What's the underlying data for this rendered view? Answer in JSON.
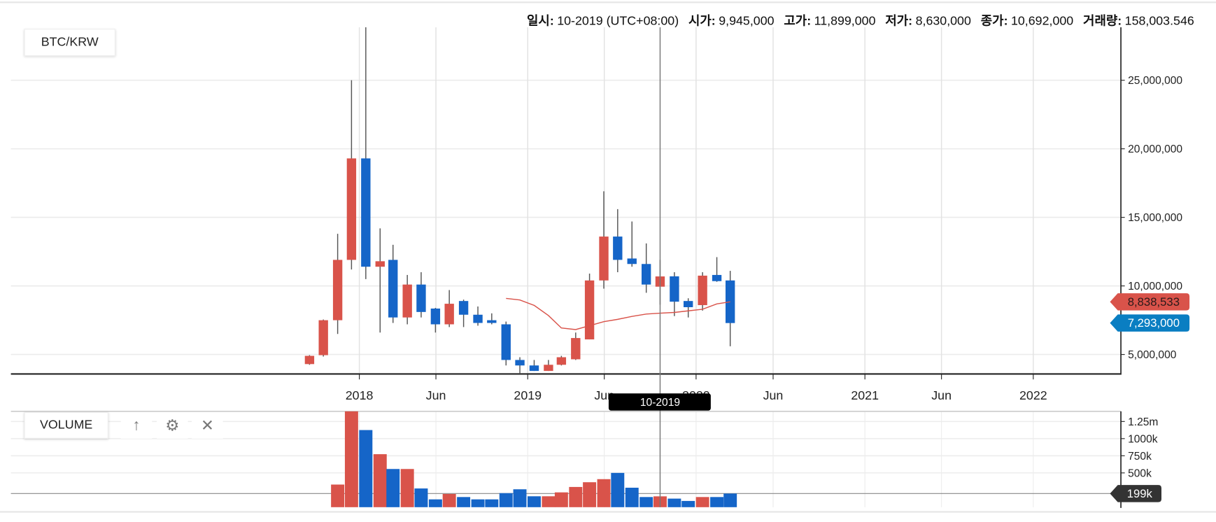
{
  "header": {
    "date_label": "일시:",
    "date_value": "10-2019 (UTC+08:00)",
    "open_label": "시가:",
    "open_value": "9,945,000",
    "high_label": "고가:",
    "high_value": "11,899,000",
    "low_label": "저가:",
    "low_value": "8,630,000",
    "close_label": "종가:",
    "close_value": "10,692,000",
    "volume_label": "거래량:",
    "volume_value": "158,003.546"
  },
  "pair_button": "BTC/KRW",
  "volume_panel": {
    "label": "VOLUME",
    "tools": [
      "arrow-up-icon",
      "gear-icon",
      "close-icon"
    ],
    "tool_glyphs": [
      "↑",
      "⚙",
      "✕"
    ]
  },
  "crosshair": {
    "label": "10-2019",
    "date": "2019-10-15"
  },
  "price_badges": {
    "ma": "8,838,533",
    "last": "7,293,000"
  },
  "volume_badge": "199k",
  "colors": {
    "up": "#d9534a",
    "down": "#1565c8",
    "ma": "#d9534a",
    "last_badge": "#0a7ec2",
    "volume_badge": "#333333"
  },
  "chart_data": [
    {
      "type": "candlestick",
      "title": "BTC/KRW",
      "grid": true,
      "x_ticks": [
        {
          "label": "2018",
          "date": "2018-01-01"
        },
        {
          "label": "Jun",
          "date": "2018-06-16"
        },
        {
          "label": "2019",
          "date": "2019-01-01"
        },
        {
          "label": "Jun",
          "date": "2019-06-16"
        },
        {
          "label": "2020",
          "date": "2020-01-01"
        },
        {
          "label": "Jun",
          "date": "2020-06-16"
        },
        {
          "label": "2021",
          "date": "2021-01-01"
        },
        {
          "label": "Jun",
          "date": "2021-06-16"
        },
        {
          "label": "2022",
          "date": "2022-01-01"
        }
      ],
      "y_ticks": [
        "5,000,000",
        "10,000,000",
        "15,000,000",
        "20,000,000",
        "25,000,000"
      ],
      "y_tick_values": [
        5000000,
        10000000,
        15000000,
        20000000,
        25000000
      ],
      "ylim": [
        3580000,
        28900000
      ],
      "candles": [
        {
          "date": "2017-09",
          "o": 4300000,
          "h": 4950000,
          "l": 4250000,
          "c": 4900000
        },
        {
          "date": "2017-10",
          "o": 4950000,
          "h": 7550000,
          "l": 4850000,
          "c": 7500000
        },
        {
          "date": "2017-11",
          "o": 7500000,
          "h": 13800000,
          "l": 6500000,
          "c": 11900000
        },
        {
          "date": "2017-12",
          "o": 11900000,
          "h": 25000000,
          "l": 11200000,
          "c": 19300000
        },
        {
          "date": "2018-01",
          "o": 19300000,
          "h": 29000000,
          "l": 10500000,
          "c": 11400000
        },
        {
          "date": "2018-02",
          "o": 11400000,
          "h": 14200000,
          "l": 6600000,
          "c": 11800000
        },
        {
          "date": "2018-03",
          "o": 11900000,
          "h": 13000000,
          "l": 7300000,
          "c": 7700000
        },
        {
          "date": "2018-04",
          "o": 7700000,
          "h": 10800000,
          "l": 7200000,
          "c": 10100000
        },
        {
          "date": "2018-05",
          "o": 10100000,
          "h": 11000000,
          "l": 7700000,
          "c": 8100000
        },
        {
          "date": "2018-06",
          "o": 8350000,
          "h": 8400000,
          "l": 6600000,
          "c": 7200000
        },
        {
          "date": "2018-07",
          "o": 7200000,
          "h": 9700000,
          "l": 7000000,
          "c": 8700000
        },
        {
          "date": "2018-08",
          "o": 8900000,
          "h": 9000000,
          "l": 7000000,
          "c": 7900000
        },
        {
          "date": "2018-09",
          "o": 7900000,
          "h": 8500000,
          "l": 7100000,
          "c": 7300000
        },
        {
          "date": "2018-10",
          "o": 7500000,
          "h": 8000000,
          "l": 7200000,
          "c": 7300000
        },
        {
          "date": "2018-11",
          "o": 7200000,
          "h": 7400000,
          "l": 4200000,
          "c": 4600000
        },
        {
          "date": "2018-12",
          "o": 4600000,
          "h": 4800000,
          "l": 3600000,
          "c": 4200000
        },
        {
          "date": "2019-01",
          "o": 4200000,
          "h": 4600000,
          "l": 3800000,
          "c": 3800000
        },
        {
          "date": "2019-02",
          "o": 3800000,
          "h": 4600000,
          "l": 3800000,
          "c": 4250000
        },
        {
          "date": "2019-03",
          "o": 4250000,
          "h": 4900000,
          "l": 4200000,
          "c": 4800000
        },
        {
          "date": "2019-04",
          "o": 4650000,
          "h": 6600000,
          "l": 4600000,
          "c": 6200000
        },
        {
          "date": "2019-05",
          "o": 6100000,
          "h": 10900000,
          "l": 6100000,
          "c": 10400000
        },
        {
          "date": "2019-06",
          "o": 10400000,
          "h": 16900000,
          "l": 9800000,
          "c": 13600000
        },
        {
          "date": "2019-07",
          "o": 13600000,
          "h": 15600000,
          "l": 11000000,
          "c": 11900000
        },
        {
          "date": "2019-08",
          "o": 12000000,
          "h": 14700000,
          "l": 11400000,
          "c": 11600000
        },
        {
          "date": "2019-09",
          "o": 11600000,
          "h": 13100000,
          "l": 9500000,
          "c": 10100000
        },
        {
          "date": "2019-10",
          "o": 9945000,
          "h": 11899000,
          "l": 8630000,
          "c": 10692000
        },
        {
          "date": "2019-11",
          "o": 10700000,
          "h": 11000000,
          "l": 7800000,
          "c": 8850000
        },
        {
          "date": "2019-12",
          "o": 8900000,
          "h": 9100000,
          "l": 7700000,
          "c": 8450000
        },
        {
          "date": "2020-01",
          "o": 8600000,
          "h": 11000000,
          "l": 8200000,
          "c": 10750000
        },
        {
          "date": "2020-02",
          "o": 10800000,
          "h": 12100000,
          "l": 10300000,
          "c": 10350000
        },
        {
          "date": "2020-03",
          "o": 10400000,
          "h": 11100000,
          "l": 5600000,
          "c": 7293000
        }
      ],
      "moving_average": [
        {
          "date": "2018-11",
          "v": 9090000
        },
        {
          "date": "2018-12",
          "v": 8980000
        },
        {
          "date": "2019-01",
          "v": 8580000
        },
        {
          "date": "2019-02",
          "v": 7840000
        },
        {
          "date": "2019-03",
          "v": 6930000
        },
        {
          "date": "2019-04",
          "v": 6820000
        },
        {
          "date": "2019-05",
          "v": 7100000
        },
        {
          "date": "2019-06",
          "v": 7390000
        },
        {
          "date": "2019-07",
          "v": 7560000
        },
        {
          "date": "2019-08",
          "v": 7780000
        },
        {
          "date": "2019-09",
          "v": 7950000
        },
        {
          "date": "2019-10",
          "v": 8010000
        },
        {
          "date": "2019-11",
          "v": 8070000
        },
        {
          "date": "2019-12",
          "v": 8180000
        },
        {
          "date": "2020-01",
          "v": 8300000
        },
        {
          "date": "2020-02",
          "v": 8690000
        },
        {
          "date": "2020-03",
          "v": 8838533
        }
      ]
    },
    {
      "type": "bar",
      "title": "VOLUME",
      "y_ticks": [
        "500k",
        "750k",
        "1000k",
        "1.25m"
      ],
      "y_tick_values": [
        500000,
        750000,
        1000000,
        1250000
      ],
      "ylim": [
        0,
        1400000
      ],
      "bars": [
        {
          "date": "2017-11",
          "v": 330000,
          "dir": "up"
        },
        {
          "date": "2017-12",
          "v": 1450000,
          "dir": "up"
        },
        {
          "date": "2018-01",
          "v": 1125000,
          "dir": "down"
        },
        {
          "date": "2018-02",
          "v": 773000,
          "dir": "up"
        },
        {
          "date": "2018-03",
          "v": 557000,
          "dir": "down"
        },
        {
          "date": "2018-04",
          "v": 557000,
          "dir": "up"
        },
        {
          "date": "2018-05",
          "v": 273000,
          "dir": "down"
        },
        {
          "date": "2018-06",
          "v": 114000,
          "dir": "down"
        },
        {
          "date": "2018-07",
          "v": 193000,
          "dir": "up"
        },
        {
          "date": "2018-08",
          "v": 148000,
          "dir": "down"
        },
        {
          "date": "2018-09",
          "v": 114000,
          "dir": "down"
        },
        {
          "date": "2018-10",
          "v": 114000,
          "dir": "down"
        },
        {
          "date": "2018-11",
          "v": 205000,
          "dir": "down"
        },
        {
          "date": "2018-12",
          "v": 261000,
          "dir": "down"
        },
        {
          "date": "2019-01",
          "v": 159000,
          "dir": "down"
        },
        {
          "date": "2019-02",
          "v": 159000,
          "dir": "up"
        },
        {
          "date": "2019-03",
          "v": 216000,
          "dir": "up"
        },
        {
          "date": "2019-04",
          "v": 295000,
          "dir": "up"
        },
        {
          "date": "2019-05",
          "v": 364000,
          "dir": "up"
        },
        {
          "date": "2019-06",
          "v": 409000,
          "dir": "up"
        },
        {
          "date": "2019-07",
          "v": 500000,
          "dir": "down"
        },
        {
          "date": "2019-08",
          "v": 284000,
          "dir": "down"
        },
        {
          "date": "2019-09",
          "v": 148000,
          "dir": "down"
        },
        {
          "date": "2019-10",
          "v": 158004,
          "dir": "up"
        },
        {
          "date": "2019-11",
          "v": 125000,
          "dir": "down"
        },
        {
          "date": "2019-12",
          "v": 91000,
          "dir": "down"
        },
        {
          "date": "2020-01",
          "v": 148000,
          "dir": "up"
        },
        {
          "date": "2020-02",
          "v": 148000,
          "dir": "down"
        },
        {
          "date": "2020-03",
          "v": 199000,
          "dir": "down"
        }
      ]
    }
  ]
}
